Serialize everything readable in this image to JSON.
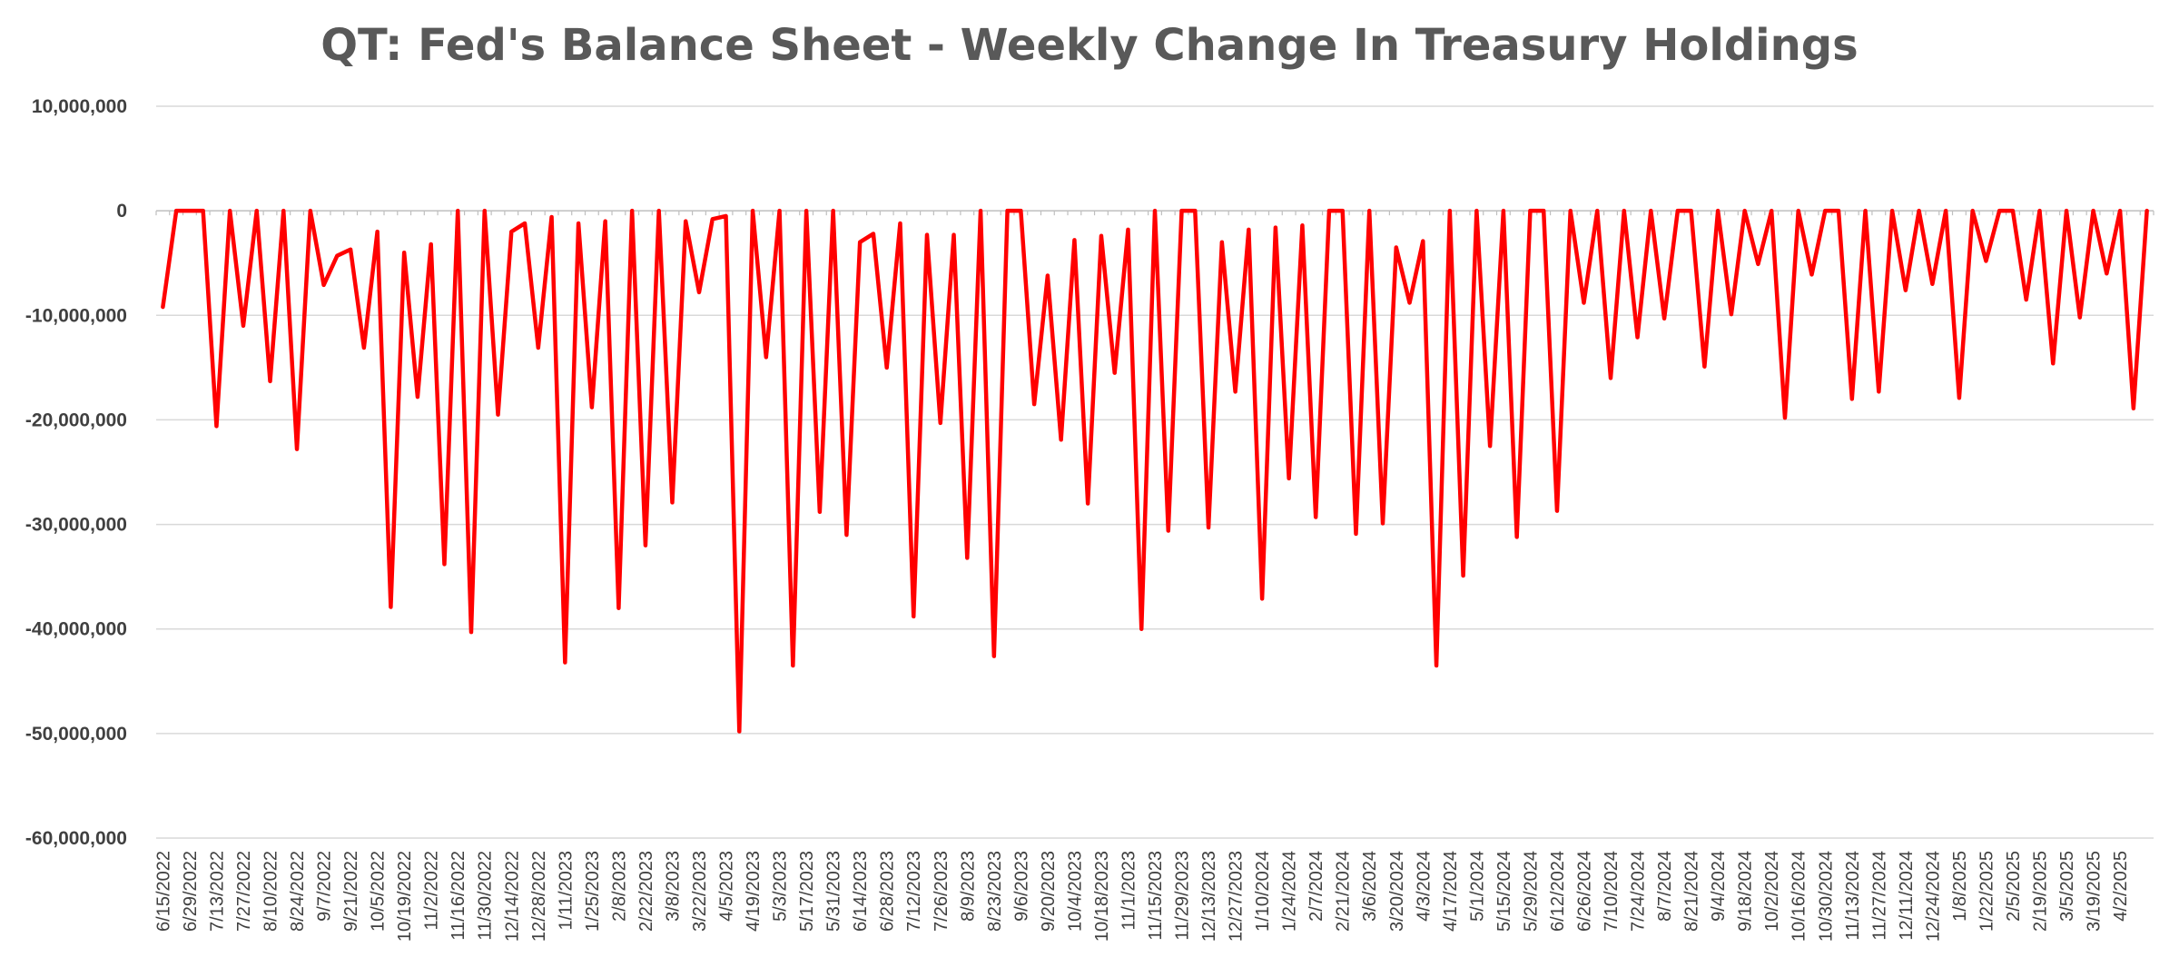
{
  "chart_data": {
    "type": "line",
    "title": "QT: Fed's Balance Sheet - Weekly Change In Treasury Holdings",
    "xlabel": "",
    "ylabel": "",
    "ylim": [
      -60000000,
      10000000
    ],
    "y_ticks": [
      10000000,
      0,
      -10000000,
      -20000000,
      -30000000,
      -40000000,
      -50000000,
      -60000000
    ],
    "y_tick_labels": [
      "10,000,000",
      "0",
      "-10,000,000",
      "-20,000,000",
      "-30,000,000",
      "-40,000,000",
      "-50,000,000",
      "-60,000,000"
    ],
    "grid": true,
    "legend": "none",
    "x_tick_labels": [
      "6/15/2022",
      "6/29/2022",
      "7/13/2022",
      "7/27/2022",
      "8/10/2022",
      "8/24/2022",
      "9/7/2022",
      "9/21/2022",
      "10/5/2022",
      "10/19/2022",
      "11/2/2022",
      "11/16/2022",
      "11/30/2022",
      "12/14/2022",
      "12/28/2022",
      "1/11/2023",
      "1/25/2023",
      "2/8/2023",
      "2/22/2023",
      "3/8/2023",
      "3/22/2023",
      "4/5/2023",
      "4/19/2023",
      "5/3/2023",
      "5/17/2023",
      "5/31/2023",
      "6/14/2023",
      "6/28/2023",
      "7/12/2023",
      "7/26/2023",
      "8/9/2023",
      "8/23/2023",
      "9/6/2023",
      "9/20/2023",
      "10/4/2023",
      "10/18/2023",
      "11/1/2023",
      "11/15/2023",
      "11/29/2023",
      "12/13/2023",
      "12/27/2023",
      "1/10/2024",
      "1/24/2024",
      "2/7/2024",
      "2/21/2024",
      "3/6/2024",
      "3/20/2024",
      "4/3/2024",
      "4/17/2024",
      "5/1/2024",
      "5/15/2024",
      "5/29/2024",
      "6/12/2024",
      "6/26/2024",
      "7/10/2024",
      "7/24/2024",
      "8/7/2024",
      "8/21/2024",
      "9/4/2024",
      "9/18/2024",
      "10/2/2024",
      "10/16/2024",
      "10/30/2024",
      "11/13/2024",
      "11/27/2024",
      "12/11/2024",
      "12/24/2024",
      "1/8/2025",
      "1/22/2025",
      "2/5/2025",
      "2/19/2025",
      "3/5/2025",
      "3/19/2025",
      "4/2/2025"
    ],
    "series": [
      {
        "color": "#ff0000",
        "values": [
          -9200000,
          0,
          0,
          0,
          -20600000,
          0,
          -11000000,
          0,
          -16300000,
          0,
          -22800000,
          0,
          -7100000,
          -4300000,
          -3700000,
          -13100000,
          -2000000,
          -37900000,
          -4000000,
          -17800000,
          -3200000,
          -33800000,
          0,
          -40300000,
          0,
          -19500000,
          -2000000,
          -1200000,
          -13100000,
          -600000,
          -43200000,
          -1200000,
          -18800000,
          -1000000,
          -38000000,
          0,
          -32000000,
          0,
          -27900000,
          -1000000,
          -7800000,
          -800000,
          -500000,
          -49800000,
          0,
          -14000000,
          0,
          -43500000,
          0,
          -28800000,
          0,
          -31000000,
          -3000000,
          -2200000,
          -15000000,
          -1200000,
          -38800000,
          -2300000,
          -20300000,
          -2300000,
          -33200000,
          0,
          -42600000,
          0,
          0,
          -18500000,
          -6200000,
          -21900000,
          -2800000,
          -28000000,
          -2400000,
          -15500000,
          -1800000,
          -40000000,
          0,
          -30600000,
          0,
          0,
          -30300000,
          -3000000,
          -17300000,
          -1800000,
          -37100000,
          -1600000,
          -25600000,
          -1400000,
          -29300000,
          0,
          0,
          -30900000,
          0,
          -29900000,
          -3500000,
          -8800000,
          -2900000,
          -43500000,
          0,
          -34900000,
          0,
          -22500000,
          0,
          -31200000,
          0,
          0,
          -28700000,
          0,
          -8800000,
          0,
          -16000000,
          0,
          -12100000,
          0,
          -10300000,
          0,
          0,
          -14900000,
          0,
          -9900000,
          0,
          -5100000,
          0,
          -19800000,
          0,
          -6100000,
          0,
          0,
          -18000000,
          0,
          -17300000,
          0,
          -7600000,
          0,
          -7000000,
          0,
          -17900000,
          0,
          -4800000,
          0,
          0,
          -8500000,
          0,
          -14600000,
          0,
          -10200000,
          0,
          -6000000,
          0,
          -18900000,
          0
        ]
      }
    ]
  }
}
